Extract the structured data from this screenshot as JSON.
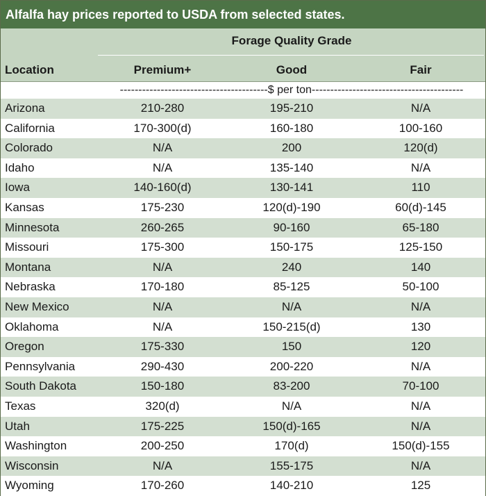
{
  "title": "Alfalfa hay prices reported to USDA from selected states.",
  "header": {
    "group_label": "Forage Quality Grade",
    "location_label": "Location",
    "columns": [
      "Premium+",
      "Good",
      "Fair"
    ]
  },
  "units_row": "----------------------------------------$ per ton-----------------------------------------",
  "rows": [
    {
      "location": "Arizona",
      "premium": "210-280",
      "good": "195-210",
      "fair": "N/A"
    },
    {
      "location": "California",
      "premium": "170-300(d)",
      "good": "160-180",
      "fair": "100-160"
    },
    {
      "location": "Colorado",
      "premium": "N/A",
      "good": "200",
      "fair": "120(d)"
    },
    {
      "location": "Idaho",
      "premium": "N/A",
      "good": "135-140",
      "fair": "N/A"
    },
    {
      "location": "Iowa",
      "premium": "140-160(d)",
      "good": "130-141",
      "fair": "110"
    },
    {
      "location": "Kansas",
      "premium": "175-230",
      "good": "120(d)-190",
      "fair": "60(d)-145"
    },
    {
      "location": "Minnesota",
      "premium": "260-265",
      "good": "90-160",
      "fair": "65-180"
    },
    {
      "location": "Missouri",
      "premium": "175-300",
      "good": "150-175",
      "fair": "125-150"
    },
    {
      "location": "Montana",
      "premium": "N/A",
      "good": "240",
      "fair": "140"
    },
    {
      "location": "Nebraska",
      "premium": "170-180",
      "good": "85-125",
      "fair": "50-100"
    },
    {
      "location": "New Mexico",
      "premium": "N/A",
      "good": "N/A",
      "fair": "N/A"
    },
    {
      "location": "Oklahoma",
      "premium": "N/A",
      "good": "150-215(d)",
      "fair": "130"
    },
    {
      "location": "Oregon",
      "premium": "175-330",
      "good": "150",
      "fair": "120"
    },
    {
      "location": "Pennsylvania",
      "premium": "290-430",
      "good": "200-220",
      "fair": "N/A"
    },
    {
      "location": "South Dakota",
      "premium": "150-180",
      "good": "83-200",
      "fair": "70-100"
    },
    {
      "location": "Texas",
      "premium": "320(d)",
      "good": "N/A",
      "fair": "N/A"
    },
    {
      "location": "Utah",
      "premium": "175-225",
      "good": "150(d)-165",
      "fair": "N/A"
    },
    {
      "location": "Washington",
      "premium": "200-250",
      "good": "170(d)",
      "fair": "150(d)-155"
    },
    {
      "location": "Wisconsin",
      "premium": "N/A",
      "good": "155-175",
      "fair": "N/A"
    },
    {
      "location": "Wyoming",
      "premium": "170-260",
      "good": "140-210",
      "fair": "125"
    }
  ],
  "colors": {
    "title_bg": "#4d7446",
    "header_bg": "#c5d5c1",
    "shade_row": "#d3dfd1"
  }
}
